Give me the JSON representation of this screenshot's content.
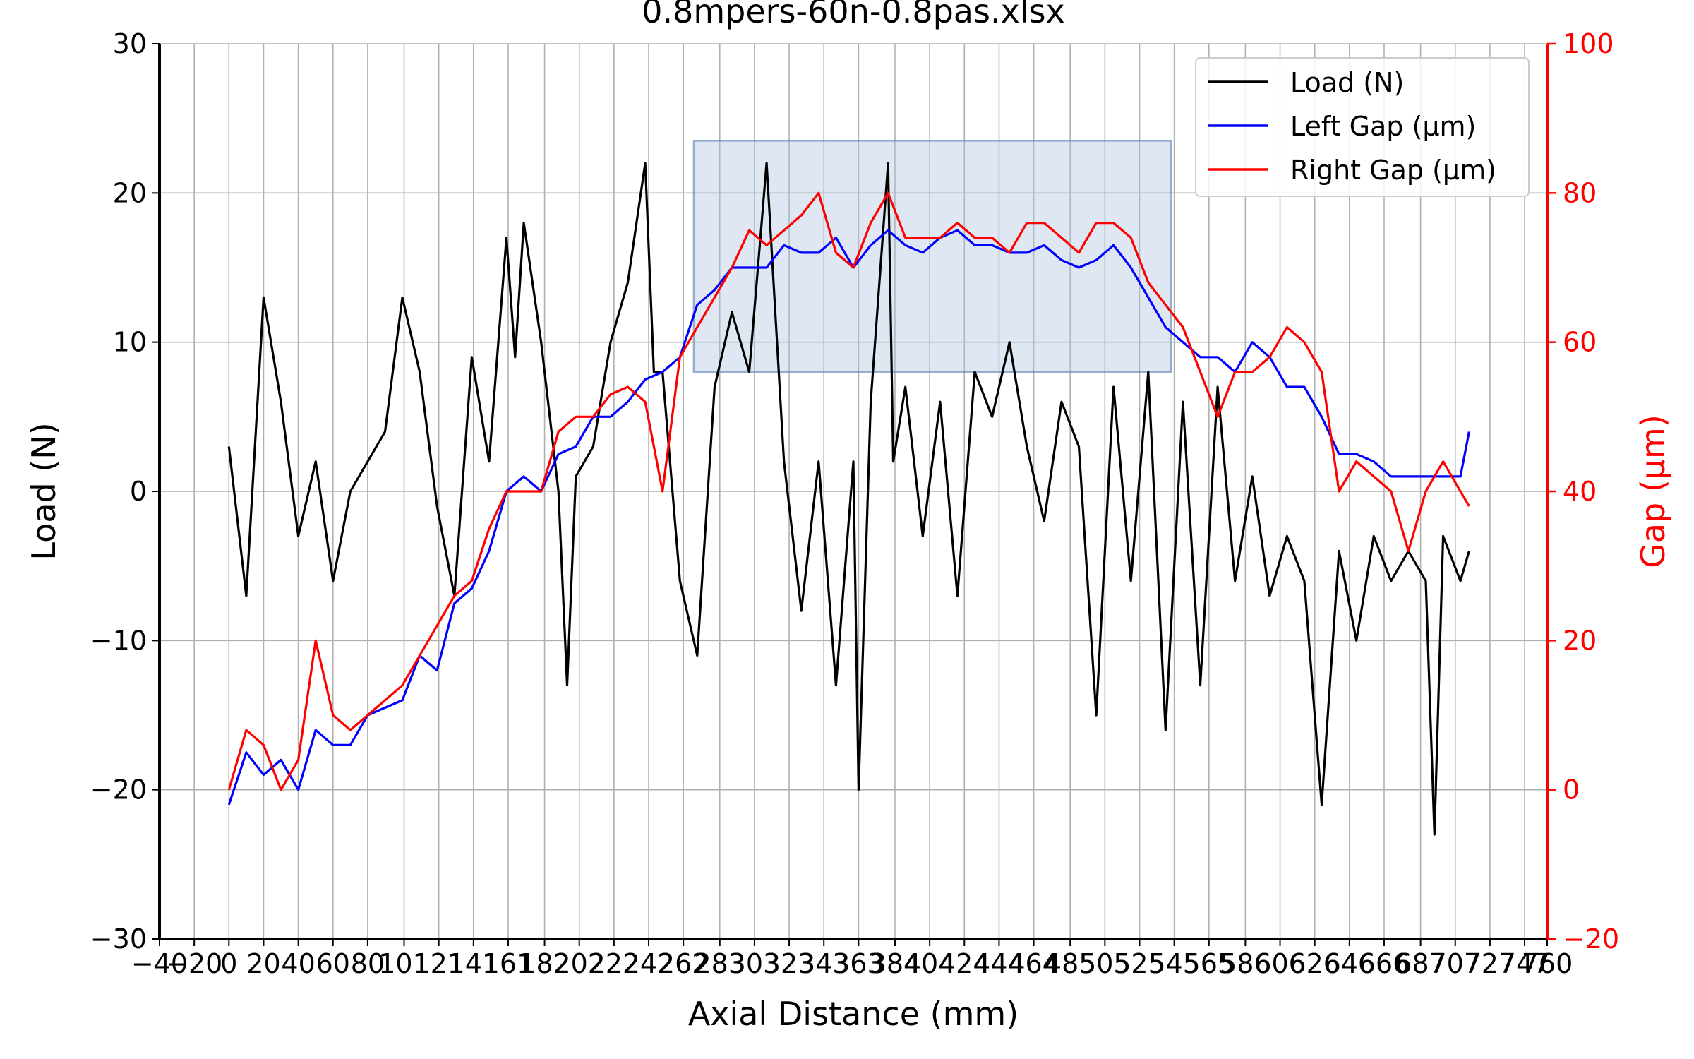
{
  "chart_data": {
    "type": "line",
    "title": "0.8mpers-60n-0.8pas.xlsx",
    "xlabel": "Axial Distance (mm)",
    "ylabel": "Load (N)",
    "y2label": "Gap (µm)",
    "xlim": [
      -40,
      760
    ],
    "ylim": [
      -30,
      30
    ],
    "y2lim": [
      -20,
      100
    ],
    "x_ticks": [
      -40,
      -20,
      0,
      20,
      40,
      60,
      80,
      101,
      121,
      141,
      161,
      182,
      202,
      222,
      242,
      262,
      283,
      303,
      323,
      343,
      363,
      384,
      404,
      424,
      444,
      464,
      485,
      505,
      525,
      545,
      565,
      586,
      606,
      626,
      646,
      666,
      687,
      707,
      727,
      747,
      760
    ],
    "y_ticks": [
      -30,
      -20,
      -10,
      0,
      10,
      20,
      30
    ],
    "y2_ticks": [
      -20,
      0,
      20,
      40,
      60,
      80,
      100
    ],
    "grid": true,
    "legend_position": "top-right",
    "highlight_box": {
      "x": [
        268,
        543
      ],
      "y2": [
        56,
        87
      ]
    },
    "colors": {
      "load": "#000000",
      "left": "#0000ff",
      "right": "#ff0000",
      "highlight": "#b0c4de"
    },
    "series": [
      {
        "name": "Load (N)",
        "axis": "left",
        "x": [
          0,
          10,
          20,
          30,
          40,
          50,
          60,
          70,
          80,
          90,
          100,
          110,
          120,
          130,
          140,
          150,
          160,
          165,
          170,
          180,
          190,
          195,
          200,
          210,
          220,
          230,
          240,
          245,
          250,
          260,
          270,
          280,
          290,
          300,
          310,
          320,
          330,
          340,
          350,
          360,
          363,
          370,
          380,
          383,
          390,
          400,
          410,
          420,
          430,
          440,
          450,
          460,
          470,
          480,
          490,
          500,
          510,
          520,
          530,
          540,
          550,
          560,
          570,
          580,
          590,
          600,
          610,
          620,
          630,
          640,
          650,
          660,
          670,
          680,
          690,
          695,
          700,
          710,
          715
        ],
        "y": [
          3,
          -7,
          13,
          6,
          -3,
          2,
          -6,
          0,
          2,
          4,
          13,
          8,
          -1,
          -7,
          9,
          2,
          17,
          9,
          18,
          10,
          0,
          -13,
          1,
          3,
          10,
          14,
          22,
          8,
          8,
          -6,
          -11,
          7,
          12,
          8,
          22,
          2,
          -8,
          2,
          -13,
          2,
          -20,
          6,
          22,
          2,
          7,
          -3,
          6,
          -7,
          8,
          5,
          10,
          3,
          -2,
          6,
          3,
          -15,
          7,
          -6,
          8,
          -16,
          6,
          -13,
          7,
          -6,
          1,
          -7,
          -3,
          -6,
          -21,
          -4,
          -10,
          -3,
          -6,
          -4,
          -6,
          -23,
          -3,
          -6,
          -4
        ]
      },
      {
        "name": "Left Gap (µm)",
        "axis": "right",
        "x": [
          0,
          10,
          20,
          30,
          40,
          50,
          60,
          70,
          80,
          90,
          100,
          110,
          120,
          130,
          140,
          150,
          160,
          170,
          180,
          190,
          200,
          210,
          220,
          230,
          240,
          250,
          260,
          270,
          280,
          290,
          300,
          310,
          320,
          330,
          340,
          350,
          360,
          370,
          380,
          390,
          400,
          410,
          420,
          430,
          440,
          450,
          460,
          470,
          480,
          490,
          500,
          510,
          520,
          530,
          540,
          550,
          560,
          570,
          580,
          590,
          600,
          610,
          620,
          630,
          640,
          650,
          660,
          670,
          680,
          690,
          700,
          710,
          715
        ],
        "y": [
          -2,
          5,
          2,
          4,
          0,
          8,
          6,
          6,
          10,
          11,
          12,
          18,
          16,
          25,
          27,
          32,
          40,
          42,
          40,
          45,
          46,
          50,
          50,
          52,
          55,
          56,
          58,
          65,
          67,
          70,
          70,
          70,
          73,
          72,
          72,
          74,
          70,
          73,
          75,
          73,
          72,
          74,
          75,
          73,
          73,
          72,
          72,
          73,
          71,
          70,
          71,
          73,
          70,
          66,
          62,
          60,
          58,
          58,
          56,
          60,
          58,
          54,
          54,
          50,
          45,
          45,
          44,
          42,
          42,
          42,
          42,
          42,
          48
        ]
      },
      {
        "name": "Right Gap (µm)",
        "axis": "right",
        "x": [
          0,
          10,
          20,
          30,
          40,
          50,
          60,
          70,
          80,
          90,
          100,
          110,
          120,
          130,
          140,
          150,
          160,
          170,
          180,
          190,
          200,
          210,
          220,
          230,
          240,
          250,
          260,
          270,
          280,
          290,
          300,
          310,
          320,
          330,
          340,
          350,
          360,
          370,
          380,
          390,
          400,
          410,
          420,
          430,
          440,
          450,
          460,
          470,
          480,
          490,
          500,
          510,
          520,
          530,
          540,
          550,
          560,
          570,
          580,
          590,
          600,
          610,
          620,
          630,
          640,
          650,
          660,
          670,
          680,
          690,
          700,
          710,
          715
        ],
        "y": [
          0,
          8,
          6,
          0,
          4,
          20,
          10,
          8,
          10,
          12,
          14,
          18,
          22,
          26,
          28,
          35,
          40,
          40,
          40,
          48,
          50,
          50,
          53,
          54,
          52,
          40,
          58,
          62,
          66,
          70,
          75,
          73,
          75,
          77,
          80,
          72,
          70,
          76,
          80,
          74,
          74,
          74,
          76,
          74,
          74,
          72,
          76,
          76,
          74,
          72,
          76,
          76,
          74,
          68,
          65,
          62,
          56,
          50,
          56,
          56,
          58,
          62,
          60,
          56,
          40,
          44,
          42,
          40,
          32,
          40,
          44,
          40,
          38
        ]
      }
    ]
  }
}
